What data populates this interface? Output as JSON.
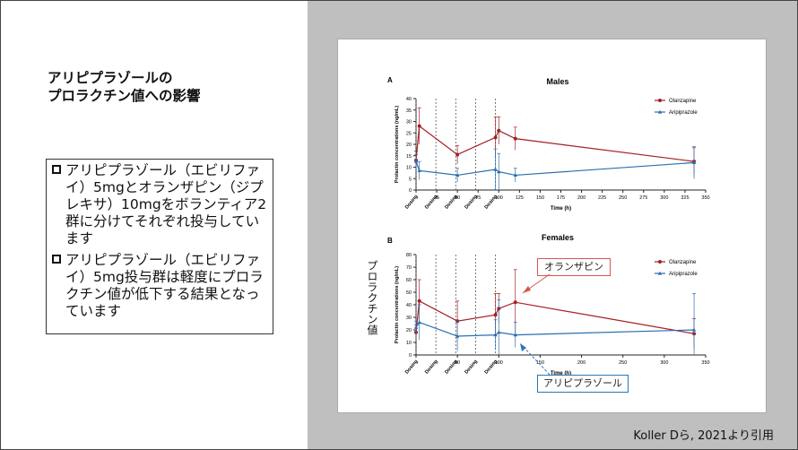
{
  "slide": {
    "title_lines": [
      "アリピプラゾールの",
      "プロラクチン値への影響"
    ],
    "bullets": [
      "アリピプラゾール（エビリファイ）5mgとオランザピン（ジプレキサ）10mgをボランティア2群に分けてそれぞれ投与しています",
      "アリピプラゾール（エビリファイ）5mg投与群は軽度にプロラクチン値が低下する結果となっています"
    ],
    "citation": "Koller Dら, 2021より引用"
  },
  "annotations": {
    "olanzapine_callout": "オランザピン",
    "aripiprazole_callout": "アリピプラゾール",
    "prolactin_label": "プロラクチン値"
  },
  "colors": {
    "olanzapine": "#a32025",
    "aripiprazole": "#2a6fb0",
    "callout_red": "#d9534f",
    "callout_blue": "#2e75b6"
  },
  "chart_data": [
    {
      "type": "line",
      "panel_letter": "A",
      "title": "Males",
      "xlabel": "Time (h)",
      "ylabel": "Prolactin concentrations (ng/mL)",
      "xlim": [
        0,
        350
      ],
      "ylim": [
        0,
        40
      ],
      "xticks": [
        0,
        25,
        50,
        75,
        100,
        125,
        150,
        175,
        200,
        225,
        250,
        275,
        300,
        325,
        350
      ],
      "yticks": [
        0,
        5,
        10,
        15,
        20,
        25,
        30,
        35,
        40
      ],
      "dosing_times": [
        0,
        24,
        48,
        72,
        96
      ],
      "dosing_label": "Dosing",
      "legend_position": "top-right",
      "series": [
        {
          "name": "Olanzapine",
          "x": [
            0,
            4,
            50,
            96,
            100,
            120,
            336
          ],
          "y": [
            13,
            28,
            15.5,
            23,
            26,
            22.5,
            12.5
          ],
          "err": [
            4,
            8,
            4,
            9,
            6,
            5,
            6
          ]
        },
        {
          "name": "Aripiprazole",
          "x": [
            0,
            4,
            50,
            96,
            100,
            120,
            336
          ],
          "y": [
            12.5,
            8.5,
            6.5,
            9,
            8,
            6.5,
            12
          ],
          "err": [
            3,
            4,
            3,
            9,
            8,
            3,
            7
          ]
        }
      ]
    },
    {
      "type": "line",
      "panel_letter": "B",
      "title": "Females",
      "xlabel": "Time (h)",
      "ylabel": "Prolactin concentrations (ng/mL)",
      "xlim": [
        0,
        350
      ],
      "ylim": [
        0,
        80
      ],
      "xticks": [
        0,
        50,
        100,
        150,
        200,
        250,
        300,
        350
      ],
      "yticks": [
        0,
        10,
        20,
        30,
        40,
        50,
        60,
        70,
        80
      ],
      "dosing_times": [
        0,
        24,
        48,
        72,
        96
      ],
      "dosing_label": "Dosing",
      "legend_position": "top-right",
      "series": [
        {
          "name": "Olanzapine",
          "x": [
            0,
            4,
            50,
            96,
            100,
            120,
            336
          ],
          "y": [
            18,
            43,
            27,
            32,
            37,
            42,
            17
          ],
          "err": [
            6,
            17,
            16,
            17,
            12,
            26,
            12
          ]
        },
        {
          "name": "Aripiprazole",
          "x": [
            0,
            4,
            50,
            96,
            100,
            120,
            336
          ],
          "y": [
            22,
            26,
            15,
            16,
            18,
            16,
            20
          ],
          "err": [
            5,
            14,
            12,
            12,
            26,
            10,
            29
          ]
        }
      ]
    }
  ]
}
